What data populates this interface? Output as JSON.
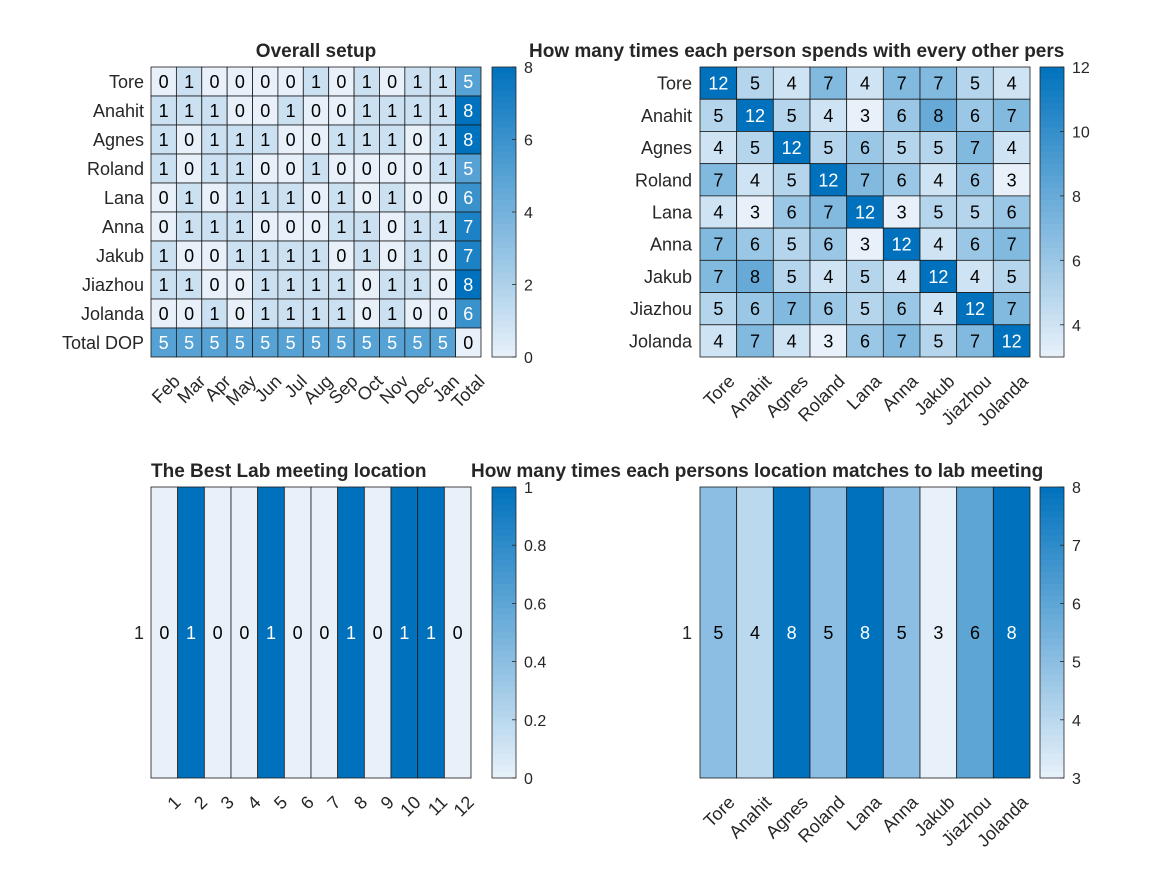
{
  "colormap": {
    "low": "#e8f1fa",
    "high": "#0072bd",
    "text_dark": "#000000",
    "text_light": "#ffffff",
    "grid": "#1a1a1a"
  },
  "chart_data": [
    {
      "type": "heatmap",
      "title": "Overall setup",
      "xlabels": [
        "Feb",
        "Mar",
        "Apr",
        "May",
        "Jun",
        "Jul",
        "Aug",
        "Sep",
        "Oct",
        "Nov",
        "Dec",
        "Jan",
        "Total"
      ],
      "ylabels": [
        "Tore",
        "Anahit",
        "Agnes",
        "Roland",
        "Lana",
        "Anna",
        "Jakub",
        "Jiazhou",
        "Jolanda",
        "Total DOP"
      ],
      "values": [
        [
          0,
          1,
          0,
          0,
          0,
          0,
          1,
          0,
          1,
          0,
          1,
          1,
          5
        ],
        [
          1,
          1,
          1,
          0,
          0,
          1,
          0,
          0,
          1,
          1,
          1,
          1,
          8
        ],
        [
          1,
          0,
          1,
          1,
          1,
          0,
          0,
          1,
          1,
          1,
          0,
          1,
          8
        ],
        [
          1,
          0,
          1,
          1,
          0,
          0,
          1,
          0,
          0,
          0,
          0,
          1,
          5
        ],
        [
          0,
          1,
          0,
          1,
          1,
          1,
          0,
          1,
          0,
          1,
          0,
          0,
          6
        ],
        [
          0,
          1,
          1,
          1,
          0,
          0,
          0,
          1,
          1,
          0,
          1,
          1,
          7
        ],
        [
          1,
          0,
          0,
          1,
          1,
          1,
          1,
          0,
          1,
          0,
          1,
          0,
          7
        ],
        [
          1,
          1,
          0,
          0,
          1,
          1,
          1,
          1,
          0,
          1,
          1,
          0,
          8
        ],
        [
          0,
          0,
          1,
          0,
          1,
          1,
          1,
          1,
          0,
          1,
          0,
          0,
          6
        ],
        [
          5,
          5,
          5,
          5,
          5,
          5,
          5,
          5,
          5,
          5,
          5,
          5,
          0
        ]
      ],
      "clim": [
        0,
        8
      ],
      "colorbar_ticks": [
        0,
        2,
        4,
        6,
        8
      ]
    },
    {
      "type": "heatmap",
      "title": "How many times each person spends with every other pers",
      "xlabels": [
        "Tore",
        "Anahit",
        "Agnes",
        "Roland",
        "Lana",
        "Anna",
        "Jakub",
        "Jiazhou",
        "Jolanda"
      ],
      "ylabels": [
        "Tore",
        "Anahit",
        "Agnes",
        "Roland",
        "Lana",
        "Anna",
        "Jakub",
        "Jiazhou",
        "Jolanda"
      ],
      "values": [
        [
          12,
          5,
          4,
          7,
          4,
          7,
          7,
          5,
          4
        ],
        [
          5,
          12,
          5,
          4,
          3,
          6,
          8,
          6,
          7
        ],
        [
          4,
          5,
          12,
          5,
          6,
          5,
          5,
          7,
          4
        ],
        [
          7,
          4,
          5,
          12,
          7,
          6,
          4,
          6,
          3
        ],
        [
          4,
          3,
          6,
          7,
          12,
          3,
          5,
          5,
          6
        ],
        [
          7,
          6,
          5,
          6,
          3,
          12,
          4,
          6,
          7
        ],
        [
          7,
          8,
          5,
          4,
          5,
          4,
          12,
          4,
          5
        ],
        [
          5,
          6,
          7,
          6,
          5,
          6,
          4,
          12,
          7
        ],
        [
          4,
          7,
          4,
          3,
          6,
          7,
          5,
          7,
          12
        ]
      ],
      "clim": [
        3,
        12
      ],
      "colorbar_ticks": [
        4,
        6,
        8,
        10,
        12
      ]
    },
    {
      "type": "heatmap",
      "title": "The Best Lab meeting location",
      "xlabels": [
        "1",
        "2",
        "3",
        "4",
        "5",
        "6",
        "7",
        "8",
        "9",
        "10",
        "11",
        "12"
      ],
      "ylabels": [
        "1"
      ],
      "values": [
        [
          0,
          1,
          0,
          0,
          1,
          0,
          0,
          1,
          0,
          1,
          1,
          0
        ]
      ],
      "clim": [
        0,
        1
      ],
      "colorbar_ticks": [
        0,
        0.2,
        0.4,
        0.6,
        0.8,
        1
      ]
    },
    {
      "type": "heatmap",
      "title": "How many times each persons location matches to lab meeting",
      "xlabels": [
        "Tore",
        "Anahit",
        "Agnes",
        "Roland",
        "Lana",
        "Anna",
        "Jakub",
        "Jiazhou",
        "Jolanda"
      ],
      "ylabels": [
        "1"
      ],
      "values": [
        [
          5,
          4,
          8,
          5,
          8,
          5,
          3,
          6,
          8
        ]
      ],
      "clim": [
        3,
        8
      ],
      "colorbar_ticks": [
        3,
        4,
        5,
        6,
        7,
        8
      ]
    }
  ]
}
